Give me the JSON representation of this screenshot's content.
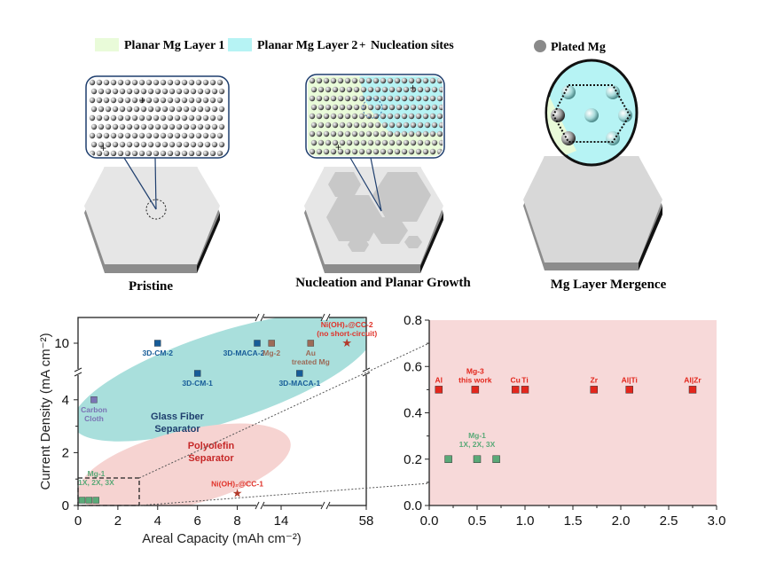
{
  "legend": {
    "items": [
      {
        "label": "Planar Mg Layer 1",
        "swatch": "#e9fbd9",
        "kind": "rect"
      },
      {
        "label": "Planar Mg Layer 2",
        "swatch": "#b6f3f4",
        "kind": "rect"
      },
      {
        "label": "Nucleation sites",
        "swatch": "#222222",
        "kind": "plus"
      },
      {
        "label": "Plated Mg",
        "swatch": "#8a8a8a",
        "kind": "circle"
      }
    ]
  },
  "stages": [
    {
      "label": "Pristine"
    },
    {
      "label": "Nucleation and Planar Growth"
    },
    {
      "label": "Mg Layer Mergence"
    }
  ],
  "chart_data": [
    {
      "type": "scatter",
      "xlabel": "Areal Capacity (mAh cm⁻²)",
      "ylabel": "Current Density (mA cm⁻²)",
      "x_ticks": [
        "0",
        "2",
        "4",
        "6",
        "8",
        "14",
        "58"
      ],
      "y_ticks": [
        "0",
        "2",
        "4",
        "10"
      ],
      "x_axis_breaks": true,
      "y_axis_break": true,
      "regions": [
        {
          "label": "Glass Fiber Separator",
          "color": "#a9dfdc",
          "text_color": "#1f3f6e"
        },
        {
          "label": "Polyolefin Separator",
          "color": "#f6d3d1",
          "text_color": "#c62828"
        }
      ],
      "zoom_box": {
        "x": [
          0,
          3
        ],
        "y": [
          0,
          1
        ]
      },
      "points": [
        {
          "label": "Mg-1\n1X, 2X, 3X",
          "x": 0.2,
          "y": 0.2,
          "marker": "square",
          "color": "#5aa978",
          "label_pos": "above-right",
          "group": "Mg-1"
        },
        {
          "label": "",
          "x": 0.55,
          "y": 0.2,
          "marker": "square",
          "color": "#5aa978",
          "group": "Mg-1"
        },
        {
          "label": "",
          "x": 0.9,
          "y": 0.2,
          "marker": "square",
          "color": "#5aa978",
          "group": "Mg-1"
        },
        {
          "label": "Carbon\nCloth",
          "x": 0.8,
          "y": 4,
          "marker": "square",
          "color": "#7a74b4",
          "label_pos": "below"
        },
        {
          "label": "3D-CM-2",
          "x": 4,
          "y": 10,
          "marker": "square",
          "color": "#175c98",
          "label_pos": "below"
        },
        {
          "label": "3D-CM-1",
          "x": 6,
          "y": 5,
          "marker": "square",
          "color": "#175c98",
          "label_pos": "below"
        },
        {
          "label": "3D-MACA-2",
          "x": 9,
          "y": 10,
          "marker": "square",
          "color": "#175c98",
          "label_pos": "below-left"
        },
        {
          "label": "Mg-2",
          "x": 12,
          "y": 10,
          "marker": "square",
          "color": "#9c6b58",
          "label_pos": "below"
        },
        {
          "label": "3D-MACA-1",
          "x": 16.5,
          "y": 5,
          "marker": "square",
          "color": "#175c98",
          "label_pos": "below"
        },
        {
          "label": "Au\ntreated Mg",
          "x": 18,
          "y": 10,
          "marker": "square",
          "color": "#9c6b58",
          "label_pos": "below"
        },
        {
          "label": "Ni(OH)₂@CC-2\n(no short-circuit)",
          "x": 40,
          "y": 10,
          "marker": "star",
          "color": "#b23a2b",
          "label_color": "#e0332a",
          "label_pos": "above"
        },
        {
          "label": "Ni(OH)₂@CC-1",
          "x": 8,
          "y": 0.45,
          "marker": "star",
          "color": "#b23a2b",
          "label_color": "#e0332a",
          "label_pos": "above"
        }
      ]
    },
    {
      "type": "scatter",
      "xlabel": "",
      "ylabel": "",
      "xlim": [
        0,
        3
      ],
      "ylim": [
        0,
        0.8
      ],
      "x_ticks": [
        "0.0",
        "0.5",
        "1.0",
        "1.5",
        "2.0",
        "2.5",
        "3.0"
      ],
      "y_ticks": [
        "0.0",
        "0.2",
        "0.4",
        "0.6",
        "0.8"
      ],
      "background": "#f7d9d9",
      "points": [
        {
          "label": "Al",
          "x": 0.1,
          "y": 0.5,
          "color": "#e3261c"
        },
        {
          "label": "Mg-3\nthis work",
          "x": 0.48,
          "y": 0.5,
          "color": "#e3261c"
        },
        {
          "label": "Cu",
          "x": 0.9,
          "y": 0.5,
          "color": "#e3261c"
        },
        {
          "label": "Ti",
          "x": 1.0,
          "y": 0.5,
          "color": "#e3261c"
        },
        {
          "label": "Zr",
          "x": 1.72,
          "y": 0.5,
          "color": "#e3261c"
        },
        {
          "label": "Al|Ti",
          "x": 2.09,
          "y": 0.5,
          "color": "#e3261c"
        },
        {
          "label": "Al|Zr",
          "x": 2.75,
          "y": 0.5,
          "color": "#e3261c"
        },
        {
          "label": "Mg-1\n1X, 2X, 3X",
          "x": 0.5,
          "y": 0.2,
          "color": "#5aa978",
          "label_anchor": true
        },
        {
          "label": "",
          "x": 0.2,
          "y": 0.2,
          "color": "#5aa978"
        },
        {
          "label": "",
          "x": 0.7,
          "y": 0.2,
          "color": "#5aa978"
        }
      ]
    }
  ]
}
